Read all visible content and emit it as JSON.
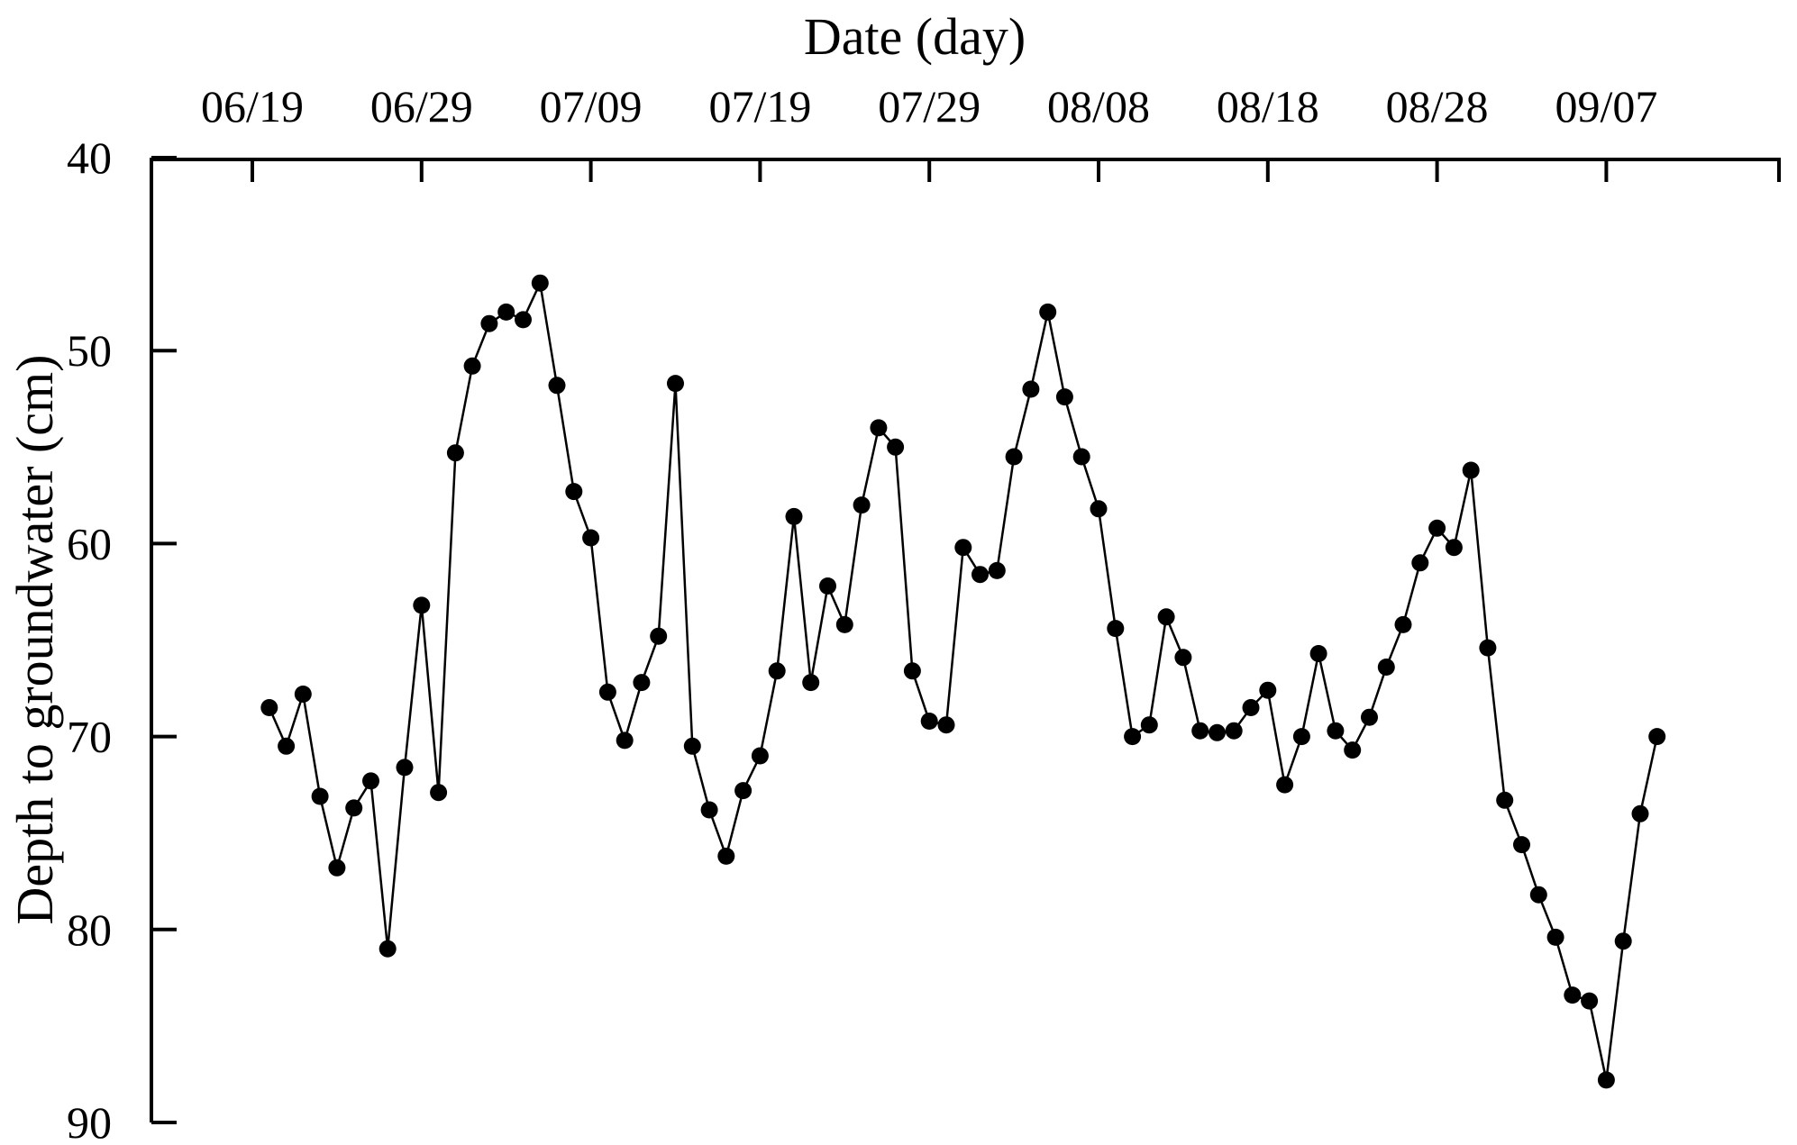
{
  "chart_data": {
    "type": "line",
    "title": "",
    "xlabel": "Date (day)",
    "ylabel": "Depth to groundwater (cm)",
    "x_ticks": [
      "06/19",
      "06/29",
      "07/09",
      "07/19",
      "07/29",
      "08/08",
      "08/18",
      "08/28",
      "09/07"
    ],
    "y_ticks": [
      "40",
      "50",
      "60",
      "70",
      "80",
      "90"
    ],
    "ylim": [
      40,
      90
    ],
    "y_inverted": true,
    "x_axis_position": "top",
    "grid": false,
    "legend": "none",
    "marker": "filled-circle",
    "line_color": "#000000",
    "series": [
      {
        "x": [
          "06/20",
          "06/21",
          "06/22",
          "06/23",
          "06/24",
          "06/25",
          "06/26",
          "06/27",
          "06/28",
          "06/29",
          "06/30",
          "07/01",
          "07/02",
          "07/03",
          "07/04",
          "07/05",
          "07/06",
          "07/07",
          "07/08",
          "07/09",
          "07/10",
          "07/11",
          "07/12",
          "07/13",
          "07/14",
          "07/15",
          "07/16",
          "07/17",
          "07/18",
          "07/19",
          "07/20",
          "07/21",
          "07/22",
          "07/23",
          "07/24",
          "07/25",
          "07/26",
          "07/27",
          "07/28",
          "07/29",
          "07/30",
          "07/31",
          "08/01",
          "08/02",
          "08/03",
          "08/04",
          "08/05",
          "08/06",
          "08/07",
          "08/08",
          "08/09",
          "08/10",
          "08/11",
          "08/12",
          "08/13",
          "08/14",
          "08/15",
          "08/16",
          "08/17",
          "08/18",
          "08/19",
          "08/20",
          "08/21",
          "08/22",
          "08/23",
          "08/24",
          "08/25",
          "08/26",
          "08/27",
          "08/28",
          "08/29",
          "08/30",
          "08/31",
          "09/01",
          "09/02",
          "09/03",
          "09/04",
          "09/05",
          "09/06",
          "09/07",
          "09/08",
          "09/09",
          "09/10"
        ],
        "values": [
          68.5,
          70.5,
          67.8,
          73.1,
          76.8,
          73.7,
          72.3,
          81.0,
          71.6,
          63.2,
          72.9,
          55.3,
          50.8,
          48.6,
          48.0,
          48.4,
          46.5,
          51.8,
          57.3,
          59.7,
          67.7,
          70.2,
          67.2,
          64.8,
          51.7,
          70.5,
          73.8,
          76.2,
          72.8,
          71.0,
          66.6,
          58.6,
          67.2,
          62.2,
          64.2,
          58.0,
          54.0,
          55.0,
          66.6,
          69.2,
          69.4,
          60.2,
          61.6,
          61.4,
          55.5,
          52.0,
          48.0,
          52.4,
          55.5,
          58.2,
          64.4,
          70.0,
          69.4,
          63.8,
          65.9,
          69.7,
          69.8,
          69.7,
          68.5,
          67.6,
          72.5,
          70.0,
          65.7,
          69.7,
          70.7,
          69.0,
          66.4,
          64.2,
          61.0,
          59.2,
          60.2,
          56.2,
          65.4,
          73.3,
          75.6,
          78.2,
          80.4,
          83.4,
          83.7,
          87.8,
          80.6,
          74.0,
          70.0
        ]
      }
    ]
  }
}
